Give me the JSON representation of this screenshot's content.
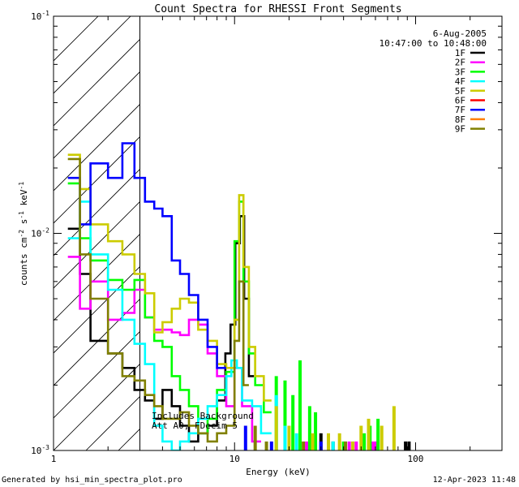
{
  "chart_data": {
    "type": "line",
    "title": "Count Spectra for RHESSI Front Segments",
    "xlabel": "Energy (keV)",
    "ylabel_base": "counts cm",
    "ylabel_exp1": "-2",
    "ylabel_mid": " s",
    "ylabel_exp2": "-1",
    "ylabel_tail": " keV",
    "ylabel_exp3": "-1",
    "x_scale": "log",
    "y_scale": "log",
    "xlim": [
      1,
      300
    ],
    "ylim": [
      0.001,
      0.1
    ],
    "x_tick_labels": [
      {
        "v": 1,
        "label": "1"
      },
      {
        "v": 10,
        "label": "10"
      },
      {
        "v": 100,
        "label": "100"
      }
    ],
    "y_tick_labels": [
      {
        "v": 0.001,
        "base": "10",
        "exp": "-3"
      },
      {
        "v": 0.01,
        "base": "10",
        "exp": "-2"
      },
      {
        "v": 0.1,
        "base": "10",
        "exp": "-1"
      }
    ],
    "hatched_region_max_x": 3.0,
    "date": "6-Aug-2005",
    "time_range": "10:47:00 to 10:48:00",
    "annotation_line1": "Includes Background",
    "annotation_line2": "Att A0, FDecim 5",
    "legend_position": "top-right",
    "series": [
      {
        "name": "1F",
        "color": "#000000",
        "edges": [
          1.2,
          1.4,
          1.6,
          2.0,
          2.4,
          2.8,
          3.2,
          3.6,
          4.0,
          4.5,
          5.0,
          5.6,
          6.3,
          7.1,
          8.0,
          8.9,
          9.5,
          10.1,
          10.7,
          11.3,
          12.0,
          12.8
        ],
        "values": [
          0.0105,
          0.0065,
          0.0032,
          0.0028,
          0.0024,
          0.0019,
          0.0017,
          0.0014,
          0.0019,
          0.0016,
          0.0013,
          0.0011,
          0.0012,
          0.0013,
          0.0017,
          0.0028,
          0.0038,
          0.009,
          0.012,
          0.005,
          0.0022
        ]
      },
      {
        "name": "2F",
        "color": "#ff00ff",
        "edges": [
          1.2,
          1.4,
          1.6,
          2.0,
          2.4,
          2.8,
          3.2,
          3.6,
          4.0,
          4.5,
          5.0,
          5.6,
          6.3,
          7.1,
          8.0,
          9.0,
          10.0,
          11.0,
          12.5,
          14.0
        ],
        "values": [
          0.0078,
          0.0045,
          0.006,
          0.004,
          0.0043,
          0.0055,
          0.0041,
          0.0036,
          0.0036,
          0.0035,
          0.0034,
          0.004,
          0.0038,
          0.0028,
          0.0022,
          0.0016,
          0.0024,
          0.0016,
          0.0011
        ]
      },
      {
        "name": "3F",
        "color": "#00ff00",
        "edges": [
          1.2,
          1.4,
          1.6,
          2.0,
          2.4,
          2.8,
          3.2,
          3.6,
          4.0,
          4.5,
          5.0,
          5.6,
          6.3,
          7.1,
          8.0,
          9.0,
          10.0,
          10.6,
          11.2,
          12.0,
          13.0,
          14.5,
          16.0
        ],
        "values": [
          0.017,
          0.0095,
          0.0075,
          0.0061,
          0.0055,
          0.0061,
          0.0041,
          0.0032,
          0.003,
          0.0022,
          0.0019,
          0.0016,
          0.0012,
          0.0014,
          0.0019,
          0.0023,
          0.0092,
          0.014,
          0.006,
          0.0028,
          0.002,
          0.0015
        ]
      },
      {
        "name": "4F",
        "color": "#00ffff",
        "edges": [
          1.2,
          1.4,
          1.6,
          2.0,
          2.4,
          2.8,
          3.2,
          3.6,
          4.0,
          4.5,
          5.0,
          5.6,
          6.3,
          7.1,
          8.0,
          9.0,
          9.6,
          10.3,
          11.0,
          12.5,
          14.0,
          16.0
        ],
        "values": [
          0.0095,
          0.014,
          0.008,
          0.0055,
          0.004,
          0.0031,
          0.0025,
          0.0013,
          0.0011,
          0.001,
          0.0011,
          0.0012,
          0.0014,
          0.0016,
          0.0018,
          0.0022,
          0.0026,
          0.0024,
          0.0017,
          0.0016,
          0.0012
        ]
      },
      {
        "name": "5F",
        "color": "#cccc00",
        "edges": [
          1.2,
          1.4,
          1.6,
          2.0,
          2.4,
          2.8,
          3.2,
          3.6,
          4.0,
          4.5,
          5.0,
          5.6,
          6.3,
          7.1,
          8.0,
          9.0,
          10.0,
          10.6,
          11.2,
          12.0,
          13.0,
          14.5,
          16.0
        ],
        "values": [
          0.023,
          0.016,
          0.011,
          0.0092,
          0.008,
          0.0065,
          0.0053,
          0.0035,
          0.0039,
          0.0045,
          0.005,
          0.0048,
          0.0036,
          0.0032,
          0.0025,
          0.0024,
          0.004,
          0.015,
          0.007,
          0.003,
          0.0022,
          0.0017
        ]
      },
      {
        "name": "6F",
        "color": "#ff0000",
        "edges": [],
        "values": []
      },
      {
        "name": "7F",
        "color": "#0000ff",
        "edges": [
          1.2,
          1.4,
          1.6,
          2.0,
          2.4,
          2.8,
          3.2,
          3.6,
          4.0,
          4.5,
          5.0,
          5.6,
          6.3,
          7.1,
          8.0,
          9.0
        ],
        "values": [
          0.018,
          0.011,
          0.021,
          0.018,
          0.026,
          0.018,
          0.014,
          0.013,
          0.012,
          0.0075,
          0.0065,
          0.0052,
          0.004,
          0.003,
          0.0024
        ]
      },
      {
        "name": "8F",
        "color": "#ff7f00",
        "edges": [],
        "values": []
      },
      {
        "name": "9F",
        "color": "#808000",
        "edges": [
          1.2,
          1.4,
          1.6,
          2.0,
          2.4,
          2.8,
          3.2,
          3.6,
          4.0,
          4.5,
          5.0,
          5.6,
          6.3,
          7.1,
          8.0,
          9.0,
          10.0,
          10.6,
          11.2,
          12.0
        ],
        "values": [
          0.022,
          0.008,
          0.005,
          0.0028,
          0.0022,
          0.0021,
          0.0018,
          0.0016,
          0.0014,
          0.0014,
          0.0015,
          0.0013,
          0.0012,
          0.0011,
          0.0012,
          0.0013,
          0.0032,
          0.006,
          0.002
        ]
      }
    ],
    "spikes": [
      {
        "color": "#000000",
        "x": 30,
        "y": 0.0012
      },
      {
        "color": "#000000",
        "x": 35,
        "y": 0.0011
      },
      {
        "color": "#000000",
        "x": 88,
        "y": 0.0011
      },
      {
        "color": "#000000",
        "x": 92,
        "y": 0.0011
      },
      {
        "color": "#ff00ff",
        "x": 25,
        "y": 0.0011
      },
      {
        "color": "#ff00ff",
        "x": 43,
        "y": 0.0011
      },
      {
        "color": "#ff00ff",
        "x": 47,
        "y": 0.0011
      },
      {
        "color": "#ff00ff",
        "x": 58,
        "y": 0.0011
      },
      {
        "color": "#ff00ff",
        "x": 60,
        "y": 0.0011
      },
      {
        "color": "#00ff00",
        "x": 17,
        "y": 0.0022
      },
      {
        "color": "#00ff00",
        "x": 19,
        "y": 0.0021
      },
      {
        "color": "#00ff00",
        "x": 21,
        "y": 0.0018
      },
      {
        "color": "#00ff00",
        "x": 23,
        "y": 0.0026
      },
      {
        "color": "#00ff00",
        "x": 26,
        "y": 0.0016
      },
      {
        "color": "#00ff00",
        "x": 28,
        "y": 0.0015
      },
      {
        "color": "#00ff00",
        "x": 40,
        "y": 0.0011
      },
      {
        "color": "#00ff00",
        "x": 52,
        "y": 0.0012
      },
      {
        "color": "#00ff00",
        "x": 56,
        "y": 0.0013
      },
      {
        "color": "#00ff00",
        "x": 62,
        "y": 0.0014
      },
      {
        "color": "#00ffff",
        "x": 17,
        "y": 0.0018
      },
      {
        "color": "#00ffff",
        "x": 19,
        "y": 0.0013
      },
      {
        "color": "#00ffff",
        "x": 22,
        "y": 0.0012
      },
      {
        "color": "#00ffff",
        "x": 35,
        "y": 0.0011
      },
      {
        "color": "#cccc00",
        "x": 17,
        "y": 0.0016
      },
      {
        "color": "#cccc00",
        "x": 20,
        "y": 0.0013
      },
      {
        "color": "#cccc00",
        "x": 27,
        "y": 0.0012
      },
      {
        "color": "#cccc00",
        "x": 33,
        "y": 0.0012
      },
      {
        "color": "#cccc00",
        "x": 38,
        "y": 0.0012
      },
      {
        "color": "#cccc00",
        "x": 45,
        "y": 0.0011
      },
      {
        "color": "#cccc00",
        "x": 50,
        "y": 0.0013
      },
      {
        "color": "#cccc00",
        "x": 55,
        "y": 0.0014
      },
      {
        "color": "#cccc00",
        "x": 65,
        "y": 0.0013
      },
      {
        "color": "#cccc00",
        "x": 76,
        "y": 0.0016
      },
      {
        "color": "#0000ff",
        "x": 11.5,
        "y": 0.0013
      },
      {
        "color": "#0000ff",
        "x": 16,
        "y": 0.0011
      },
      {
        "color": "#0000ff",
        "x": 30,
        "y": 0.0011
      },
      {
        "color": "#808000",
        "x": 13,
        "y": 0.0013
      },
      {
        "color": "#808000",
        "x": 15,
        "y": 0.0011
      },
      {
        "color": "#808000",
        "x": 24,
        "y": 0.0011
      },
      {
        "color": "#808000",
        "x": 41,
        "y": 0.0011
      }
    ]
  },
  "footer": {
    "generated_by": "Generated by hsi_min_spectra_plot.pro",
    "timestamp": "12-Apr-2023 11:48"
  }
}
